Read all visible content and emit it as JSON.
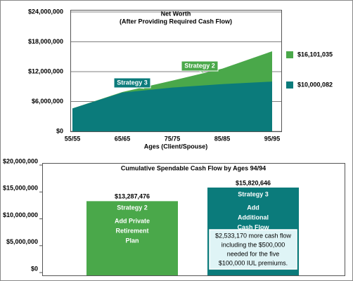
{
  "chart_data": [
    {
      "type": "area",
      "title": "Net Worth",
      "subtitle": "(After Providing Required Cash Flow)",
      "x_label": "Ages (Client/Spouse)",
      "categories": [
        "55/55",
        "65/65",
        "75/75",
        "85/85",
        "95/95"
      ],
      "series": [
        {
          "name": "Strategy 2",
          "color": "#4aa84a",
          "values": [
            4600000,
            7900000,
            10200000,
            12600000,
            16101035
          ],
          "end_label": "$16,101,035"
        },
        {
          "name": "Strategy 3",
          "color": "#0b7b7b",
          "values": [
            4600000,
            7800000,
            8800000,
            9500000,
            10000082
          ],
          "end_label": "$10,000,082"
        }
      ],
      "ylim": [
        0,
        24000000
      ],
      "yticks": [
        {
          "value": 0,
          "label": "$0"
        },
        {
          "value": 6000000,
          "label": "$6,000,000"
        },
        {
          "value": 12000000,
          "label": "$12,000,000"
        },
        {
          "value": 18000000,
          "label": "$18,000,000"
        },
        {
          "value": 24000000,
          "label": "$24,000,000"
        }
      ],
      "grid": true
    },
    {
      "type": "bar",
      "title": "Cumulative Spendable Cash Flow by Ages 94/94",
      "categories": [
        "Strategy 2",
        "Strategy 3"
      ],
      "descriptions": [
        [
          "Add Private",
          "Retirement",
          "Plan"
        ],
        [
          "Add",
          "Additional",
          "Cash Flow"
        ]
      ],
      "values": [
        13287476,
        15820646
      ],
      "value_labels": [
        "$13,287,476",
        "$15,820,646"
      ],
      "colors": [
        "#4aa84a",
        "#0b7b7b"
      ],
      "ylim": [
        0,
        20000000
      ],
      "yticks": [
        {
          "value": 0,
          "label": "$0"
        },
        {
          "value": 5000000,
          "label": "$5,000,000"
        },
        {
          "value": 10000000,
          "label": "$10,000,000"
        },
        {
          "value": 15000000,
          "label": "$15,000,000"
        },
        {
          "value": 20000000,
          "label": "$20,000,000"
        }
      ],
      "note": [
        "$2,533,170 more cash flow",
        "including the $500,000",
        "needed for the five",
        "$100,000 IUL premiums."
      ]
    }
  ]
}
